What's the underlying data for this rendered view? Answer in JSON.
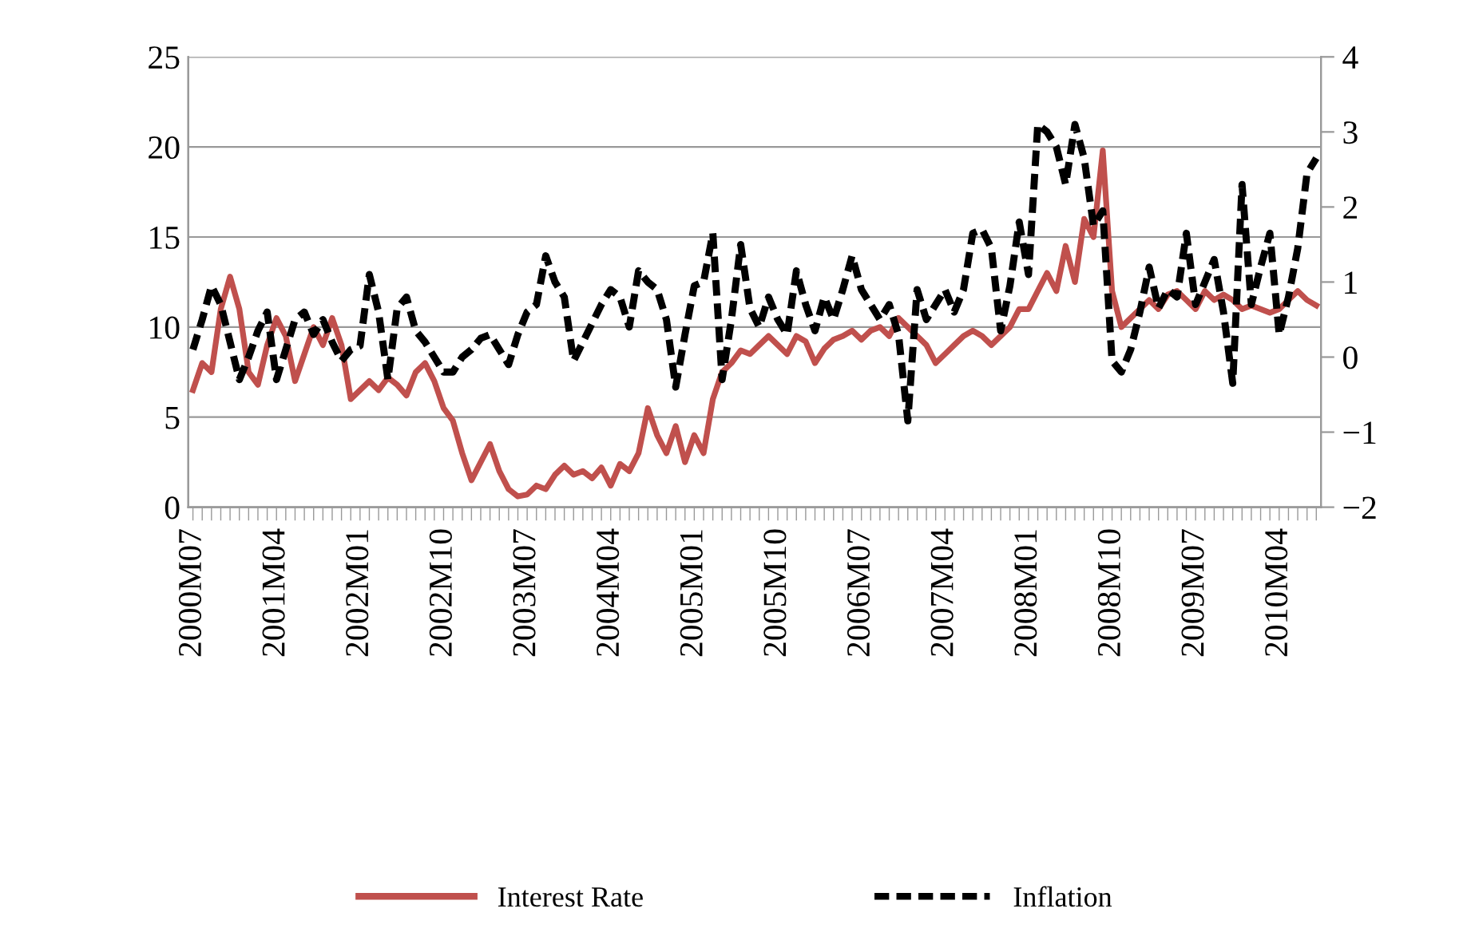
{
  "chart_data": {
    "type": "line",
    "categories": [
      "2000M07",
      null,
      null,
      null,
      null,
      null,
      null,
      null,
      null,
      "2001M04",
      null,
      null,
      null,
      null,
      null,
      null,
      null,
      null,
      "2002M01",
      null,
      null,
      null,
      null,
      null,
      null,
      null,
      null,
      "2002M10",
      null,
      null,
      null,
      null,
      null,
      null,
      null,
      null,
      "2003M07",
      null,
      null,
      null,
      null,
      null,
      null,
      null,
      null,
      "2004M04",
      null,
      null,
      null,
      null,
      null,
      null,
      null,
      null,
      "2005M01",
      null,
      null,
      null,
      null,
      null,
      null,
      null,
      null,
      "2005M10",
      null,
      null,
      null,
      null,
      null,
      null,
      null,
      null,
      "2006M07",
      null,
      null,
      null,
      null,
      null,
      null,
      null,
      null,
      "2007M04",
      null,
      null,
      null,
      null,
      null,
      null,
      null,
      null,
      "2008M01",
      null,
      null,
      null,
      null,
      null,
      null,
      null,
      null,
      "2008M10",
      null,
      null,
      null,
      null,
      null,
      null,
      null,
      null,
      "2009M07",
      null,
      null,
      null,
      null,
      null,
      null,
      null,
      null,
      "2010M04",
      null,
      null,
      null,
      null
    ],
    "series": [
      {
        "name": "Interest Rate",
        "color": "#c0504d",
        "line_style": "solid",
        "values": [
          6.5,
          8,
          7.5,
          11,
          12.8,
          11,
          7.5,
          6.8,
          9,
          10.5,
          9.5,
          7,
          8.5,
          10,
          9,
          10.5,
          9,
          6,
          6.5,
          7,
          6.5,
          7.2,
          6.8,
          6.2,
          7.5,
          8,
          7,
          5.5,
          4.8,
          3,
          1.5,
          2.5,
          3.5,
          2,
          1,
          0.6,
          0.7,
          1.2,
          1,
          1.8,
          2.3,
          1.8,
          2,
          1.6,
          2.2,
          1.2,
          2.4,
          2,
          3,
          5.5,
          4,
          3,
          4.5,
          2.5,
          4,
          3,
          6,
          7.5,
          8,
          8.7,
          8.5,
          9,
          9.5,
          9,
          8.5,
          9.5,
          9.2,
          8,
          8.8,
          9.3,
          9.5,
          9.8,
          9.3,
          9.8,
          10,
          9.5,
          10.5,
          10,
          9.5,
          9,
          8,
          8.5,
          9,
          9.5,
          9.8,
          9.5,
          9,
          9.5,
          10,
          11,
          11,
          12,
          13,
          12,
          14.5,
          12.5,
          16,
          15,
          19.8,
          12,
          10,
          10.5,
          11,
          11.5,
          11,
          11.8,
          12,
          11.5,
          11,
          12,
          11.5,
          11.8,
          11.5,
          11,
          11.2,
          11,
          10.8,
          11,
          11.5,
          12,
          11.5,
          11.2
        ]
      },
      {
        "name": "Inflation",
        "color": "#000000",
        "line_style": "dashed",
        "axis": "y2",
        "values": [
          0.1,
          0.5,
          0.95,
          0.7,
          0.2,
          -0.3,
          0.0,
          0.35,
          0.6,
          -0.3,
          0.1,
          0.5,
          0.6,
          0.3,
          0.5,
          0.2,
          -0.05,
          0.1,
          0.15,
          1.1,
          0.6,
          -0.3,
          0.65,
          0.8,
          0.35,
          0.2,
          0.0,
          -0.2,
          -0.2,
          0.0,
          0.1,
          0.25,
          0.3,
          0.1,
          -0.1,
          0.3,
          0.6,
          0.7,
          1.35,
          1.0,
          0.8,
          -0.05,
          0.2,
          0.45,
          0.7,
          0.9,
          0.8,
          0.4,
          1.15,
          1.0,
          0.9,
          0.5,
          -0.4,
          0.3,
          0.95,
          1.0,
          1.65,
          -0.3,
          0.5,
          1.5,
          0.65,
          0.4,
          0.8,
          0.5,
          0.3,
          1.15,
          0.7,
          0.35,
          0.8,
          0.5,
          0.9,
          1.35,
          0.9,
          0.7,
          0.5,
          0.7,
          0.3,
          -0.85,
          0.9,
          0.5,
          0.7,
          0.9,
          0.6,
          0.9,
          1.65,
          1.7,
          1.45,
          0.35,
          0.95,
          1.8,
          1.1,
          3.1,
          3.0,
          2.8,
          2.3,
          3.1,
          2.65,
          1.75,
          1.95,
          -0.05,
          -0.2,
          0.1,
          0.6,
          1.2,
          0.65,
          0.9,
          0.8,
          1.65,
          0.7,
          1.0,
          1.3,
          0.6,
          -0.35,
          2.3,
          0.7,
          1.2,
          1.65,
          0.3,
          0.8,
          1.45,
          2.45,
          2.65
        ]
      }
    ],
    "ylim": [
      0,
      25
    ],
    "yticks": [
      0,
      5,
      10,
      15,
      20,
      25
    ],
    "y2lim": [
      -2,
      4
    ],
    "y2ticks": [
      -2,
      -1,
      0,
      1,
      2,
      3,
      4
    ],
    "grid": "y",
    "legend": "bottom"
  }
}
